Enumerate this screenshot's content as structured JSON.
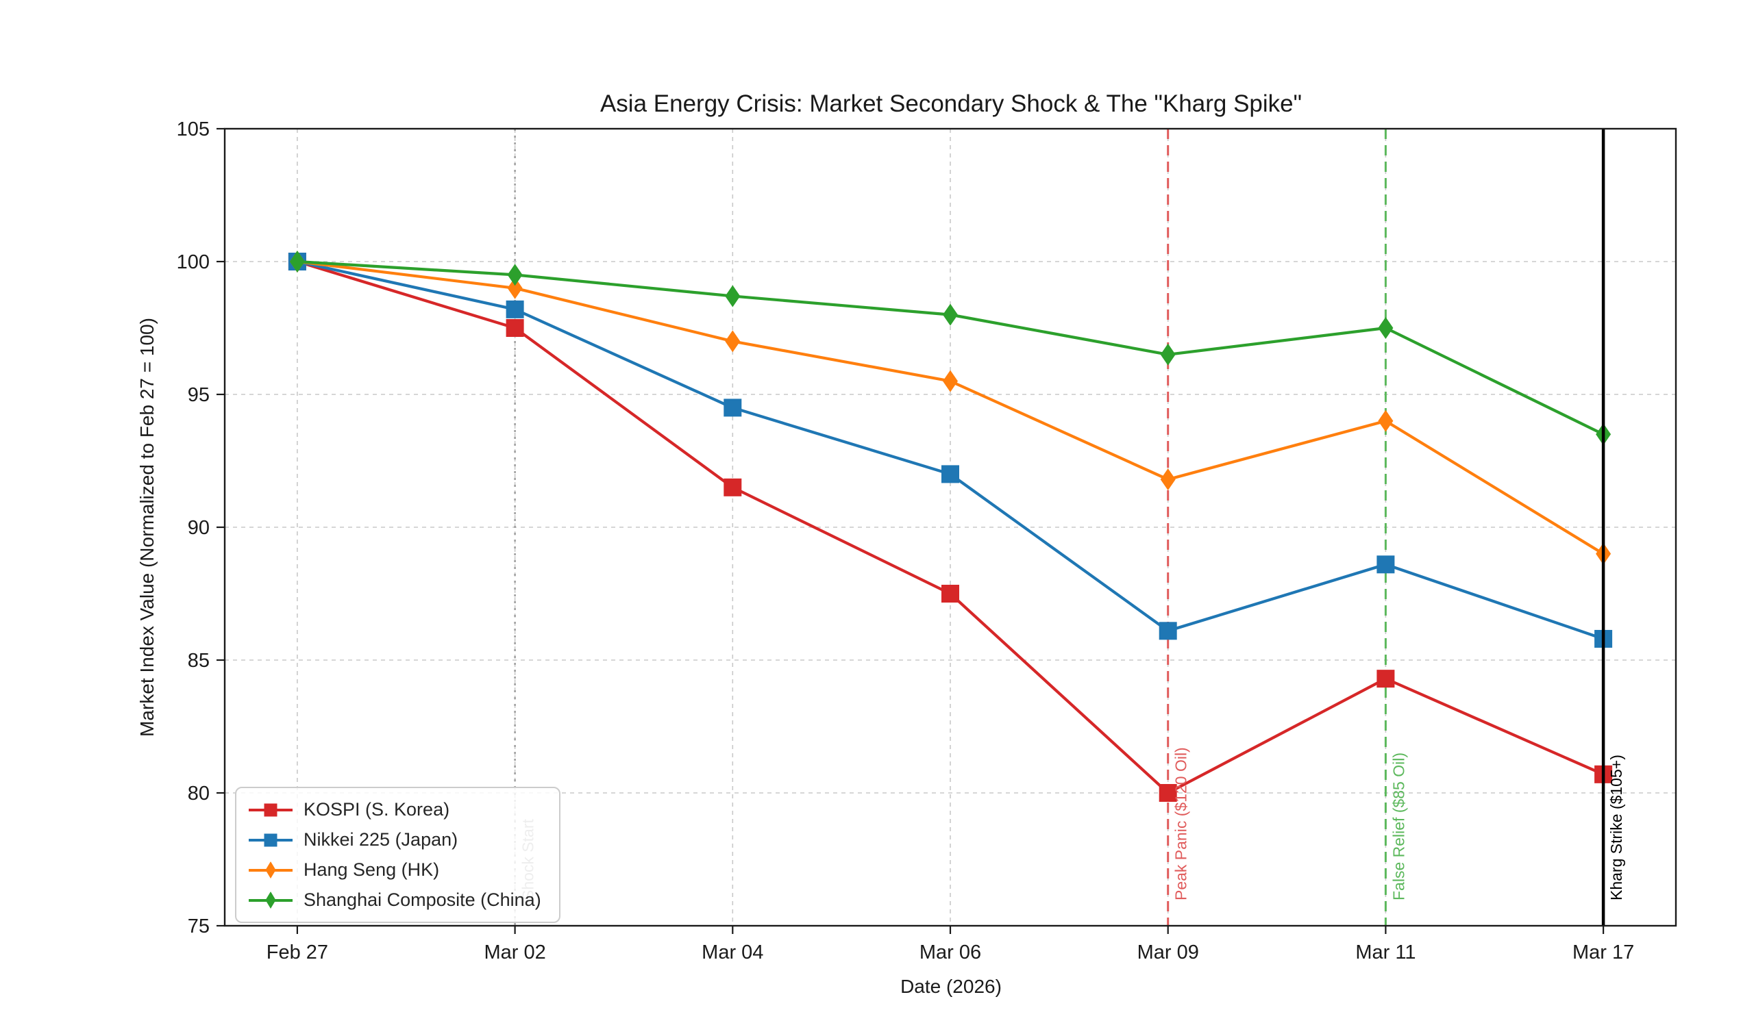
{
  "figure": {
    "background": "#ffffff",
    "spine_color": "#1a1a1a",
    "grid_color": "#c8c8c8",
    "tick_color": "#1a1a1a"
  },
  "chart_data": {
    "type": "line",
    "title": "Asia Energy Crisis: Market Secondary Shock & The \"Kharg Spike\"",
    "xlabel": "Date (2026)",
    "ylabel": "Market Index Value (Normalized to Feb 27 = 100)",
    "ylim": [
      75,
      105
    ],
    "yticks": [
      75,
      80,
      85,
      90,
      95,
      100,
      105
    ],
    "grid": true,
    "legend_position": "lower-left",
    "categories": [
      "Feb 27",
      "Mar 02",
      "Mar 04",
      "Mar 06",
      "Mar 09",
      "Mar 11",
      "Mar 17"
    ],
    "series": [
      {
        "name": "KOSPI (S. Korea)",
        "color": "#d62728",
        "marker": "square",
        "values": [
          100,
          97.5,
          91.5,
          87.5,
          80.0,
          84.3,
          80.7
        ]
      },
      {
        "name": "Nikkei 225 (Japan)",
        "color": "#1f77b4",
        "marker": "square",
        "values": [
          100,
          98.2,
          94.5,
          92.0,
          86.1,
          88.6,
          85.8
        ]
      },
      {
        "name": "Hang Seng (HK)",
        "color": "#ff7f0e",
        "marker": "diamond",
        "values": [
          100,
          99.0,
          97.0,
          95.5,
          91.8,
          94.0,
          89.0
        ]
      },
      {
        "name": "Shanghai Composite (China)",
        "color": "#2ca02c",
        "marker": "diamond",
        "values": [
          100,
          99.5,
          98.7,
          98.0,
          96.5,
          97.5,
          93.5
        ]
      }
    ],
    "event_lines": [
      {
        "x_category": "Mar 02",
        "label": "Shock Start",
        "color": "#9e9e9e",
        "style": "dotted",
        "width": 2.5,
        "above_series": false
      },
      {
        "x_category": "Mar 09",
        "label": "Peak Panic ($120 Oil)",
        "color": "#e05b5b",
        "style": "dashed",
        "width": 3,
        "above_series": false
      },
      {
        "x_category": "Mar 11",
        "label": "False Relief ($85 Oil)",
        "color": "#5cb85c",
        "style": "dashed",
        "width": 3,
        "above_series": false
      },
      {
        "x_category": "Mar 17",
        "label": "Kharg Strike ($105+)",
        "color": "#000000",
        "style": "solid",
        "width": 4.5,
        "above_series": true
      }
    ]
  }
}
